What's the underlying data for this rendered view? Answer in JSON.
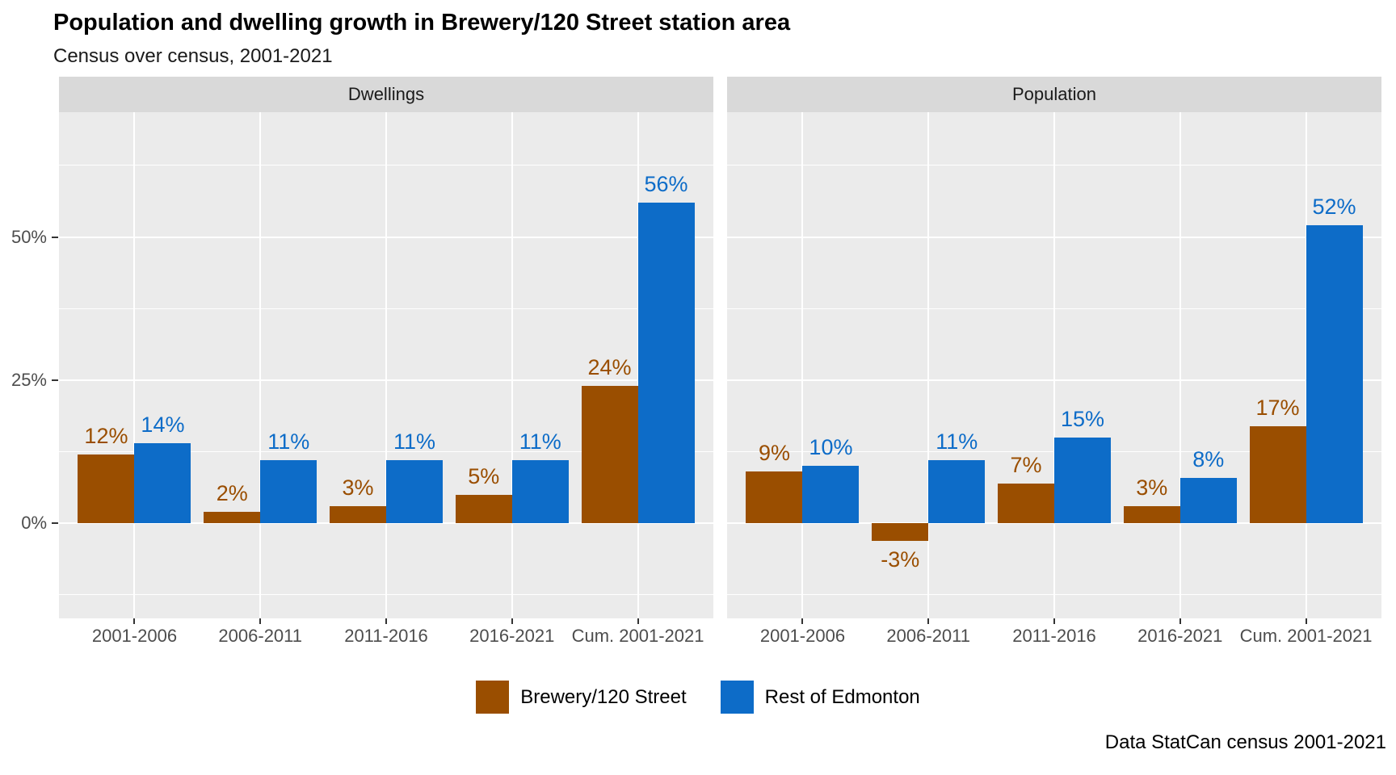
{
  "header": {
    "title": "Population and dwelling growth in Brewery/120 Street station area",
    "subtitle": "Census over census, 2001-2021"
  },
  "caption": "Data StatCan census 2001-2021",
  "colors": {
    "brewery": "#9A4E00",
    "rest_of_edmonton": "#0D6CC8",
    "panel_background": "#EBEBEB",
    "strip_background": "#D9D9D9",
    "gridline": "#FFFFFF",
    "axis_text": "#4D4D4D"
  },
  "legend": {
    "position": "bottom",
    "items": [
      {
        "label": "Brewery/120 Street",
        "color": "#9A4E00"
      },
      {
        "label": "Rest of Edmonton",
        "color": "#0D6CC8"
      }
    ]
  },
  "chart_data": {
    "type": "bar",
    "grouping": "dodged",
    "grid": true,
    "value_suffix": "%",
    "categories": [
      "2001-2006",
      "2006-2011",
      "2011-2016",
      "2016-2021",
      "Cum. 2001-2021"
    ],
    "facets": [
      {
        "label": "Dwellings",
        "series": [
          {
            "name": "Brewery/120 Street",
            "color": "#9A4E00",
            "values": [
              12,
              2,
              3,
              5,
              24
            ]
          },
          {
            "name": "Rest of Edmonton",
            "color": "#0D6CC8",
            "values": [
              14,
              11,
              11,
              11,
              56
            ]
          }
        ]
      },
      {
        "label": "Population",
        "series": [
          {
            "name": "Brewery/120 Street",
            "color": "#9A4E00",
            "values": [
              9,
              -3,
              7,
              3,
              17
            ]
          },
          {
            "name": "Rest of Edmonton",
            "color": "#0D6CC8",
            "values": [
              10,
              11,
              15,
              8,
              52
            ]
          }
        ]
      }
    ],
    "y_axis": {
      "ylim": [
        -16.6,
        71.8
      ],
      "major_ticks": [
        {
          "label": "0%",
          "value": 0
        },
        {
          "label": "25%",
          "value": 25
        },
        {
          "label": "50%",
          "value": 50
        }
      ],
      "minor_gridlines": [
        -12.5,
        12.5,
        37.5,
        62.5
      ]
    }
  }
}
